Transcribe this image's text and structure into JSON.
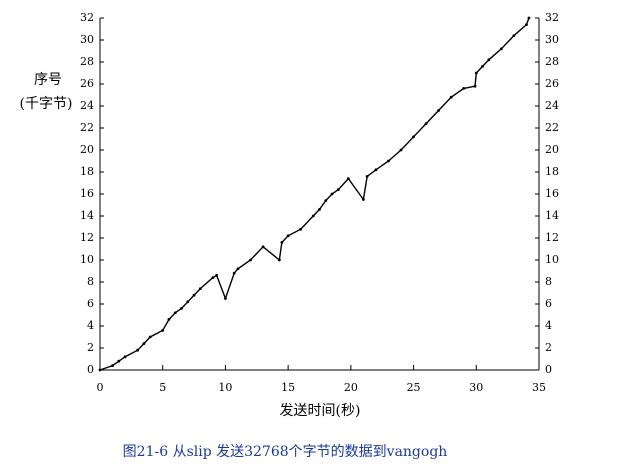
{
  "chart_data": {
    "type": "line",
    "ylabel": "序号",
    "ylabel_unit": "(千字节)",
    "xlabel": "发送时间(秒)",
    "caption": "图21-6   从slip 发送32768个字节的数据到vangogh",
    "series": [
      {
        "color": "#000000",
        "x": [
          0,
          1,
          1.5,
          2,
          3,
          3.5,
          4,
          5,
          5.5,
          6,
          6.5,
          7,
          7.5,
          8,
          9,
          9.3,
          10,
          10.7,
          11,
          12,
          13,
          14.3,
          14.5,
          15,
          16,
          17,
          17.5,
          18,
          18.5,
          19,
          19.8,
          21,
          21.3,
          22,
          23,
          24,
          25,
          26,
          27,
          28,
          29,
          29.9,
          30,
          30.5,
          31,
          32,
          33,
          34,
          34.2
        ],
        "values": [
          0,
          0.4,
          0.8,
          1.2,
          1.8,
          2.4,
          3,
          3.6,
          4.6,
          5.2,
          5.6,
          6.2,
          6.8,
          7.4,
          8.4,
          8.6,
          6.5,
          8.8,
          9.2,
          10,
          11.2,
          10,
          11.6,
          12.2,
          12.8,
          14,
          14.6,
          15.4,
          16,
          16.4,
          17.4,
          15.5,
          17.6,
          18.2,
          19,
          20,
          21.2,
          22.4,
          23.6,
          24.8,
          25.6,
          25.8,
          27,
          27.6,
          28.2,
          29.2,
          30.4,
          31.4,
          32
        ]
      }
    ],
    "xlim": [
      0,
      35
    ],
    "xticks": [
      0,
      5,
      10,
      15,
      20,
      25,
      30,
      35
    ],
    "ylim": [
      0,
      32
    ],
    "yticks": [
      0,
      2,
      4,
      6,
      8,
      10,
      12,
      14,
      16,
      18,
      20,
      22,
      24,
      26,
      28,
      30,
      32
    ],
    "y2lim": [
      0,
      32
    ],
    "y2ticks": [
      0,
      2,
      4,
      6,
      8,
      10,
      12,
      14,
      16,
      18,
      20,
      22,
      24,
      26,
      28,
      30,
      32
    ]
  }
}
